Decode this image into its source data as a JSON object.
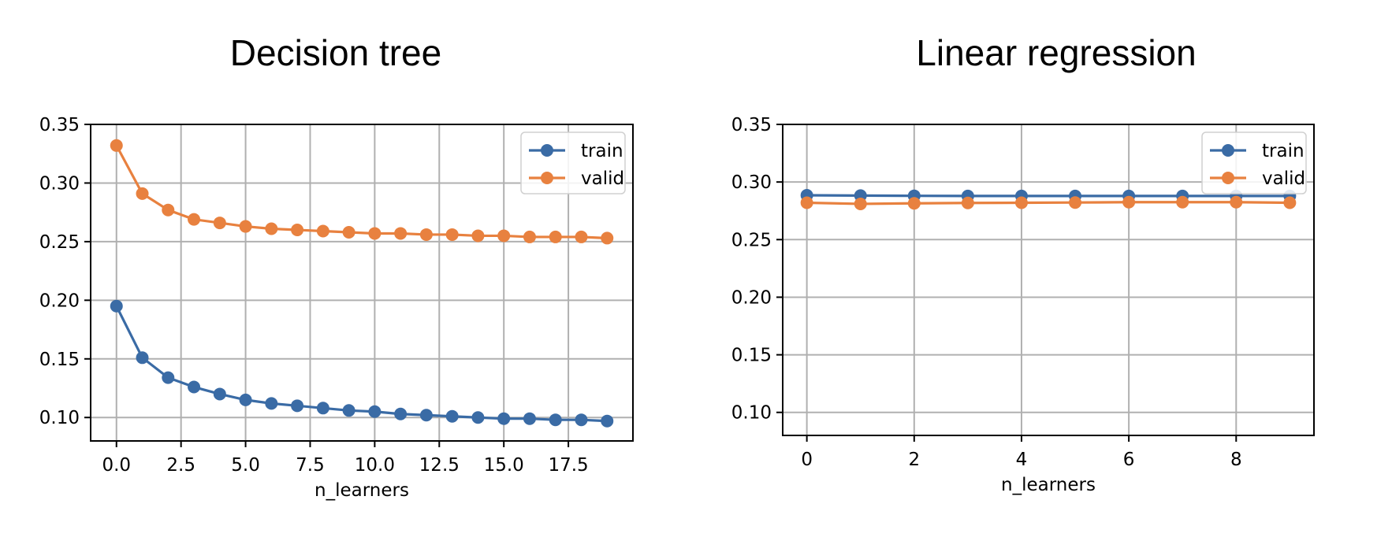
{
  "chart_data": [
    {
      "type": "line",
      "title": "Decision tree",
      "xlabel": "n_learners",
      "ylabel": "",
      "xlim": [
        -1,
        20
      ],
      "ylim": [
        0.08,
        0.35
      ],
      "xticks": [
        0.0,
        2.5,
        5.0,
        7.5,
        10.0,
        12.5,
        15.0,
        17.5
      ],
      "xtick_labels": [
        "0.0",
        "2.5",
        "5.0",
        "7.5",
        "10.0",
        "12.5",
        "15.0",
        "17.5"
      ],
      "yticks": [
        0.1,
        0.15,
        0.2,
        0.25,
        0.3,
        0.35
      ],
      "ytick_labels": [
        "0.10",
        "0.15",
        "0.20",
        "0.25",
        "0.30",
        "0.35"
      ],
      "grid": true,
      "legend": "top-right",
      "x": [
        0,
        1,
        2,
        3,
        4,
        5,
        6,
        7,
        8,
        9,
        10,
        11,
        12,
        13,
        14,
        15,
        16,
        17,
        18,
        19
      ],
      "series": [
        {
          "name": "train",
          "color": "#3a6ba5",
          "values": [
            0.195,
            0.151,
            0.134,
            0.126,
            0.12,
            0.115,
            0.112,
            0.11,
            0.108,
            0.106,
            0.105,
            0.103,
            0.102,
            0.101,
            0.1,
            0.099,
            0.099,
            0.098,
            0.098,
            0.097
          ]
        },
        {
          "name": "valid",
          "color": "#e8813f",
          "values": [
            0.332,
            0.291,
            0.277,
            0.269,
            0.266,
            0.263,
            0.261,
            0.26,
            0.259,
            0.258,
            0.257,
            0.257,
            0.256,
            0.256,
            0.255,
            0.255,
            0.254,
            0.254,
            0.254,
            0.253
          ]
        }
      ]
    },
    {
      "type": "line",
      "title": "Linear regression",
      "xlabel": "n_learners",
      "ylabel": "",
      "xlim": [
        -0.45,
        9.45
      ],
      "ylim": [
        0.08,
        0.35
      ],
      "xticks": [
        0,
        2,
        4,
        6,
        8
      ],
      "xtick_labels": [
        "0",
        "2",
        "4",
        "6",
        "8"
      ],
      "yticks": [
        0.1,
        0.15,
        0.2,
        0.25,
        0.3,
        0.35
      ],
      "ytick_labels": [
        "0.10",
        "0.15",
        "0.20",
        "0.25",
        "0.30",
        "0.35"
      ],
      "grid": true,
      "legend": "top-right",
      "x": [
        0,
        1,
        2,
        3,
        4,
        5,
        6,
        7,
        8,
        9
      ],
      "series": [
        {
          "name": "train",
          "color": "#3a6ba5",
          "values": [
            0.2885,
            0.2882,
            0.288,
            0.2879,
            0.2879,
            0.2879,
            0.2879,
            0.2879,
            0.2879,
            0.2879
          ]
        },
        {
          "name": "valid",
          "color": "#e8813f",
          "values": [
            0.282,
            0.281,
            0.2815,
            0.2818,
            0.282,
            0.2822,
            0.2825,
            0.2825,
            0.2825,
            0.282
          ]
        }
      ]
    }
  ]
}
